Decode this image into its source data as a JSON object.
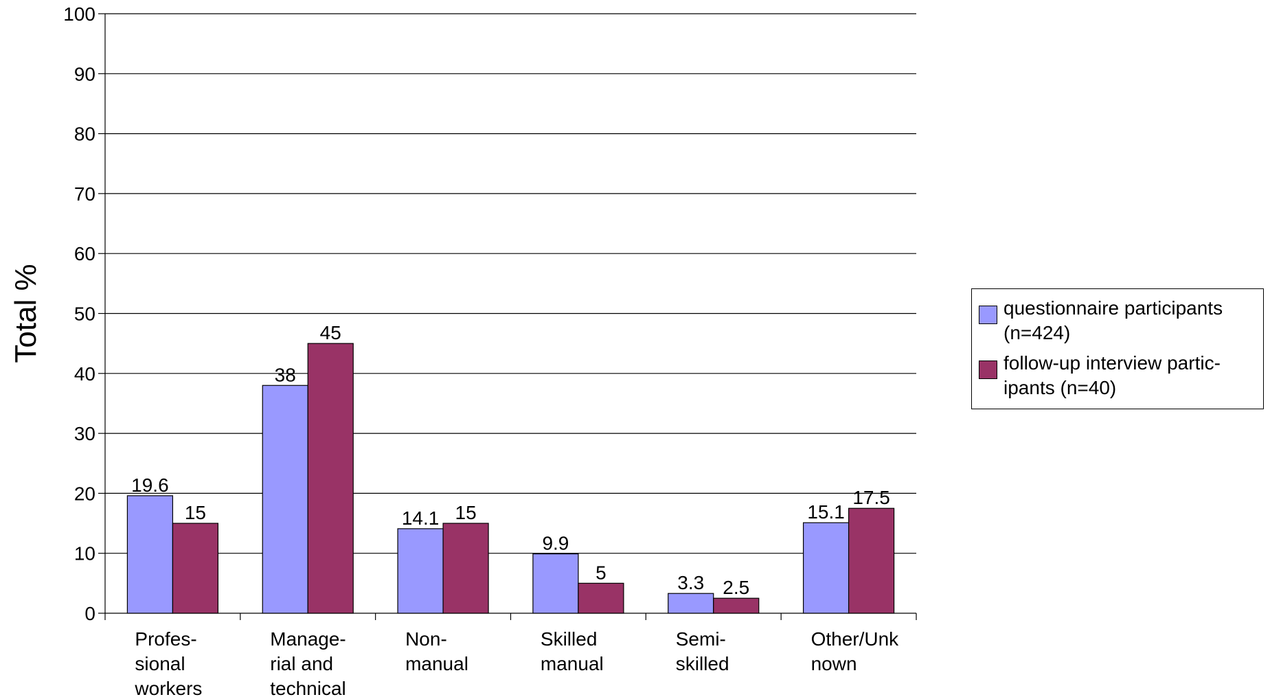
{
  "chart_data": {
    "type": "bar",
    "ylabel": "Total %",
    "xlabel": "",
    "ylim": [
      0,
      100
    ],
    "yticks": [
      0,
      10,
      20,
      30,
      40,
      50,
      60,
      70,
      80,
      90,
      100
    ],
    "grid": true,
    "legend_position": "right",
    "categories": [
      "Profes-\nsional\nworkers",
      "Manage-\nrial and\ntechnical",
      "Non-\nmanual",
      "Skilled\nmanual",
      "Semi-\nskilled",
      "Other/Unk\nnown"
    ],
    "series": [
      {
        "name": "questionnaire participants (n=424)",
        "legend_label": "questionnaire participants\n(n=424)",
        "color": "#9999ff",
        "values": [
          19.6,
          38,
          14.1,
          9.9,
          3.3,
          15.1
        ]
      },
      {
        "name": "follow-up interview participants (n=40)",
        "legend_label": "follow-up interview partic-\nipants (n=40)",
        "color": "#993366",
        "values": [
          15,
          45,
          15,
          5,
          2.5,
          17.5
        ]
      }
    ]
  }
}
